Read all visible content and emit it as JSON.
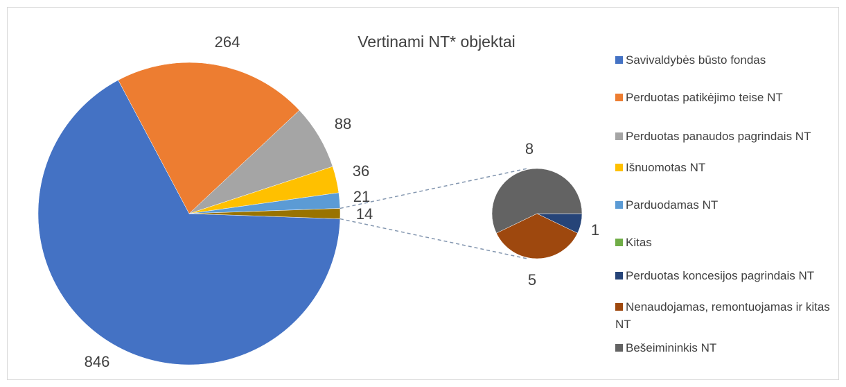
{
  "chart_data": {
    "type": "pie-of-pie",
    "title": "Vertinami NT* objektai",
    "categories": [
      "Savivaldybės būsto fondas",
      "Perduotas patikėjimo teise NT",
      "Perduotas panaudos pagrindais NT",
      "Išnuomotas NT",
      "Parduodamas NT",
      "Kitas",
      "Perduotas koncesijos pagrindais NT",
      "Nenaudojamas, remontuojamas ir kitas NT",
      "Bešeimininkis NT"
    ],
    "values": [
      846,
      264,
      88,
      36,
      21,
      null,
      1,
      5,
      8
    ],
    "colors": [
      "#4472c4",
      "#ed7d31",
      "#a5a5a5",
      "#ffc000",
      "#5b9bd5",
      "#70ad47",
      "#264478",
      "#9e480e",
      "#636363"
    ],
    "other_value": 14,
    "other_color": "#997300"
  }
}
